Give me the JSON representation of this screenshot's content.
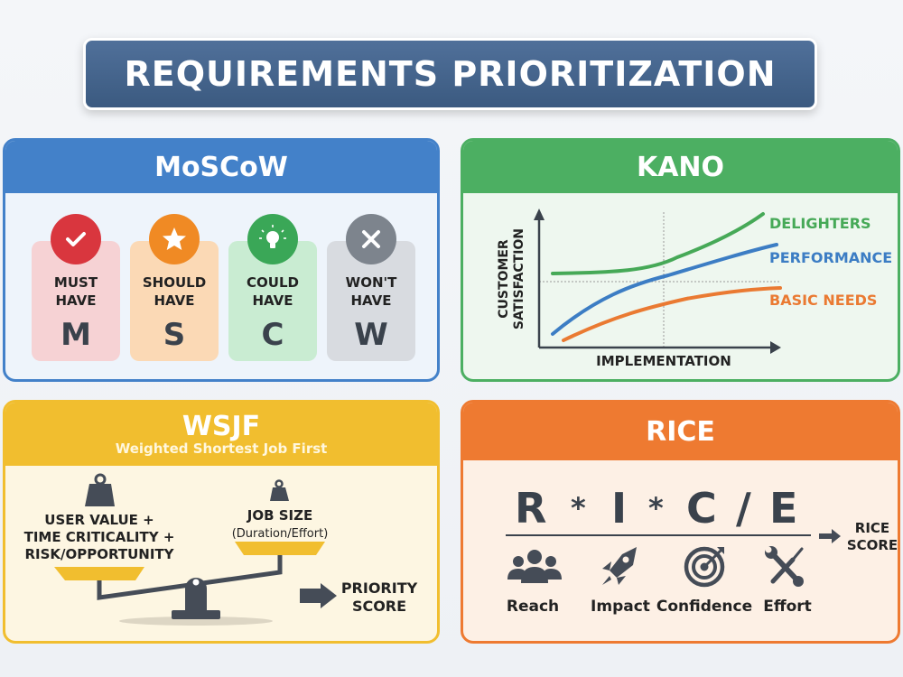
{
  "title": "REQUIREMENTS PRIORITIZATION",
  "moscow": {
    "title": "MoSCoW",
    "items": [
      {
        "line1": "MUST",
        "line2": "HAVE",
        "letter": "M",
        "icon": "check-icon",
        "color": "#d9363e",
        "bg": "#f6d2d4"
      },
      {
        "line1": "SHOULD",
        "line2": "HAVE",
        "letter": "S",
        "icon": "star-icon",
        "color": "#f08a24",
        "bg": "#fbd9b5"
      },
      {
        "line1": "COULD",
        "line2": "HAVE",
        "letter": "C",
        "icon": "lightbulb-icon",
        "color": "#3aa757",
        "bg": "#c9ecd2"
      },
      {
        "line1": "WON'T",
        "line2": "HAVE",
        "letter": "W",
        "icon": "x-icon",
        "color": "#7d848d",
        "bg": "#d8dbe0"
      }
    ]
  },
  "kano": {
    "title": "KANO",
    "y_axis_line1": "CUSTOMER",
    "y_axis_line2": "SATISFACTION",
    "x_axis": "IMPLEMENTATION",
    "curves": [
      {
        "label": "DELIGHTERS",
        "color": "#46a957"
      },
      {
        "label": "PERFORMANCE",
        "color": "#3c7dc4"
      },
      {
        "label": "BASIC NEEDS",
        "color": "#ea7a32"
      }
    ]
  },
  "wsjf": {
    "title": "WSJF",
    "subtitle": "Weighted Shortest Job First",
    "left_line1": "USER VALUE +",
    "left_line2": "TIME CRITICALITY +",
    "left_line3": "RISK/OPPORTUNITY",
    "right_line1": "JOB SIZE",
    "right_line2": "(Duration/Effort)",
    "result_line1": "PRIORITY",
    "result_line2": "SCORE"
  },
  "rice": {
    "title": "RICE",
    "formula": [
      "R",
      "*",
      "I",
      "*",
      "C",
      "/",
      "E"
    ],
    "result_line1": "RICE",
    "result_line2": "SCORE",
    "factors": [
      {
        "label": "Reach",
        "icon": "people-icon"
      },
      {
        "label": "Impact",
        "icon": "rocket-icon"
      },
      {
        "label": "Confidence",
        "icon": "target-icon"
      },
      {
        "label": "Effort",
        "icon": "tools-icon"
      }
    ]
  }
}
